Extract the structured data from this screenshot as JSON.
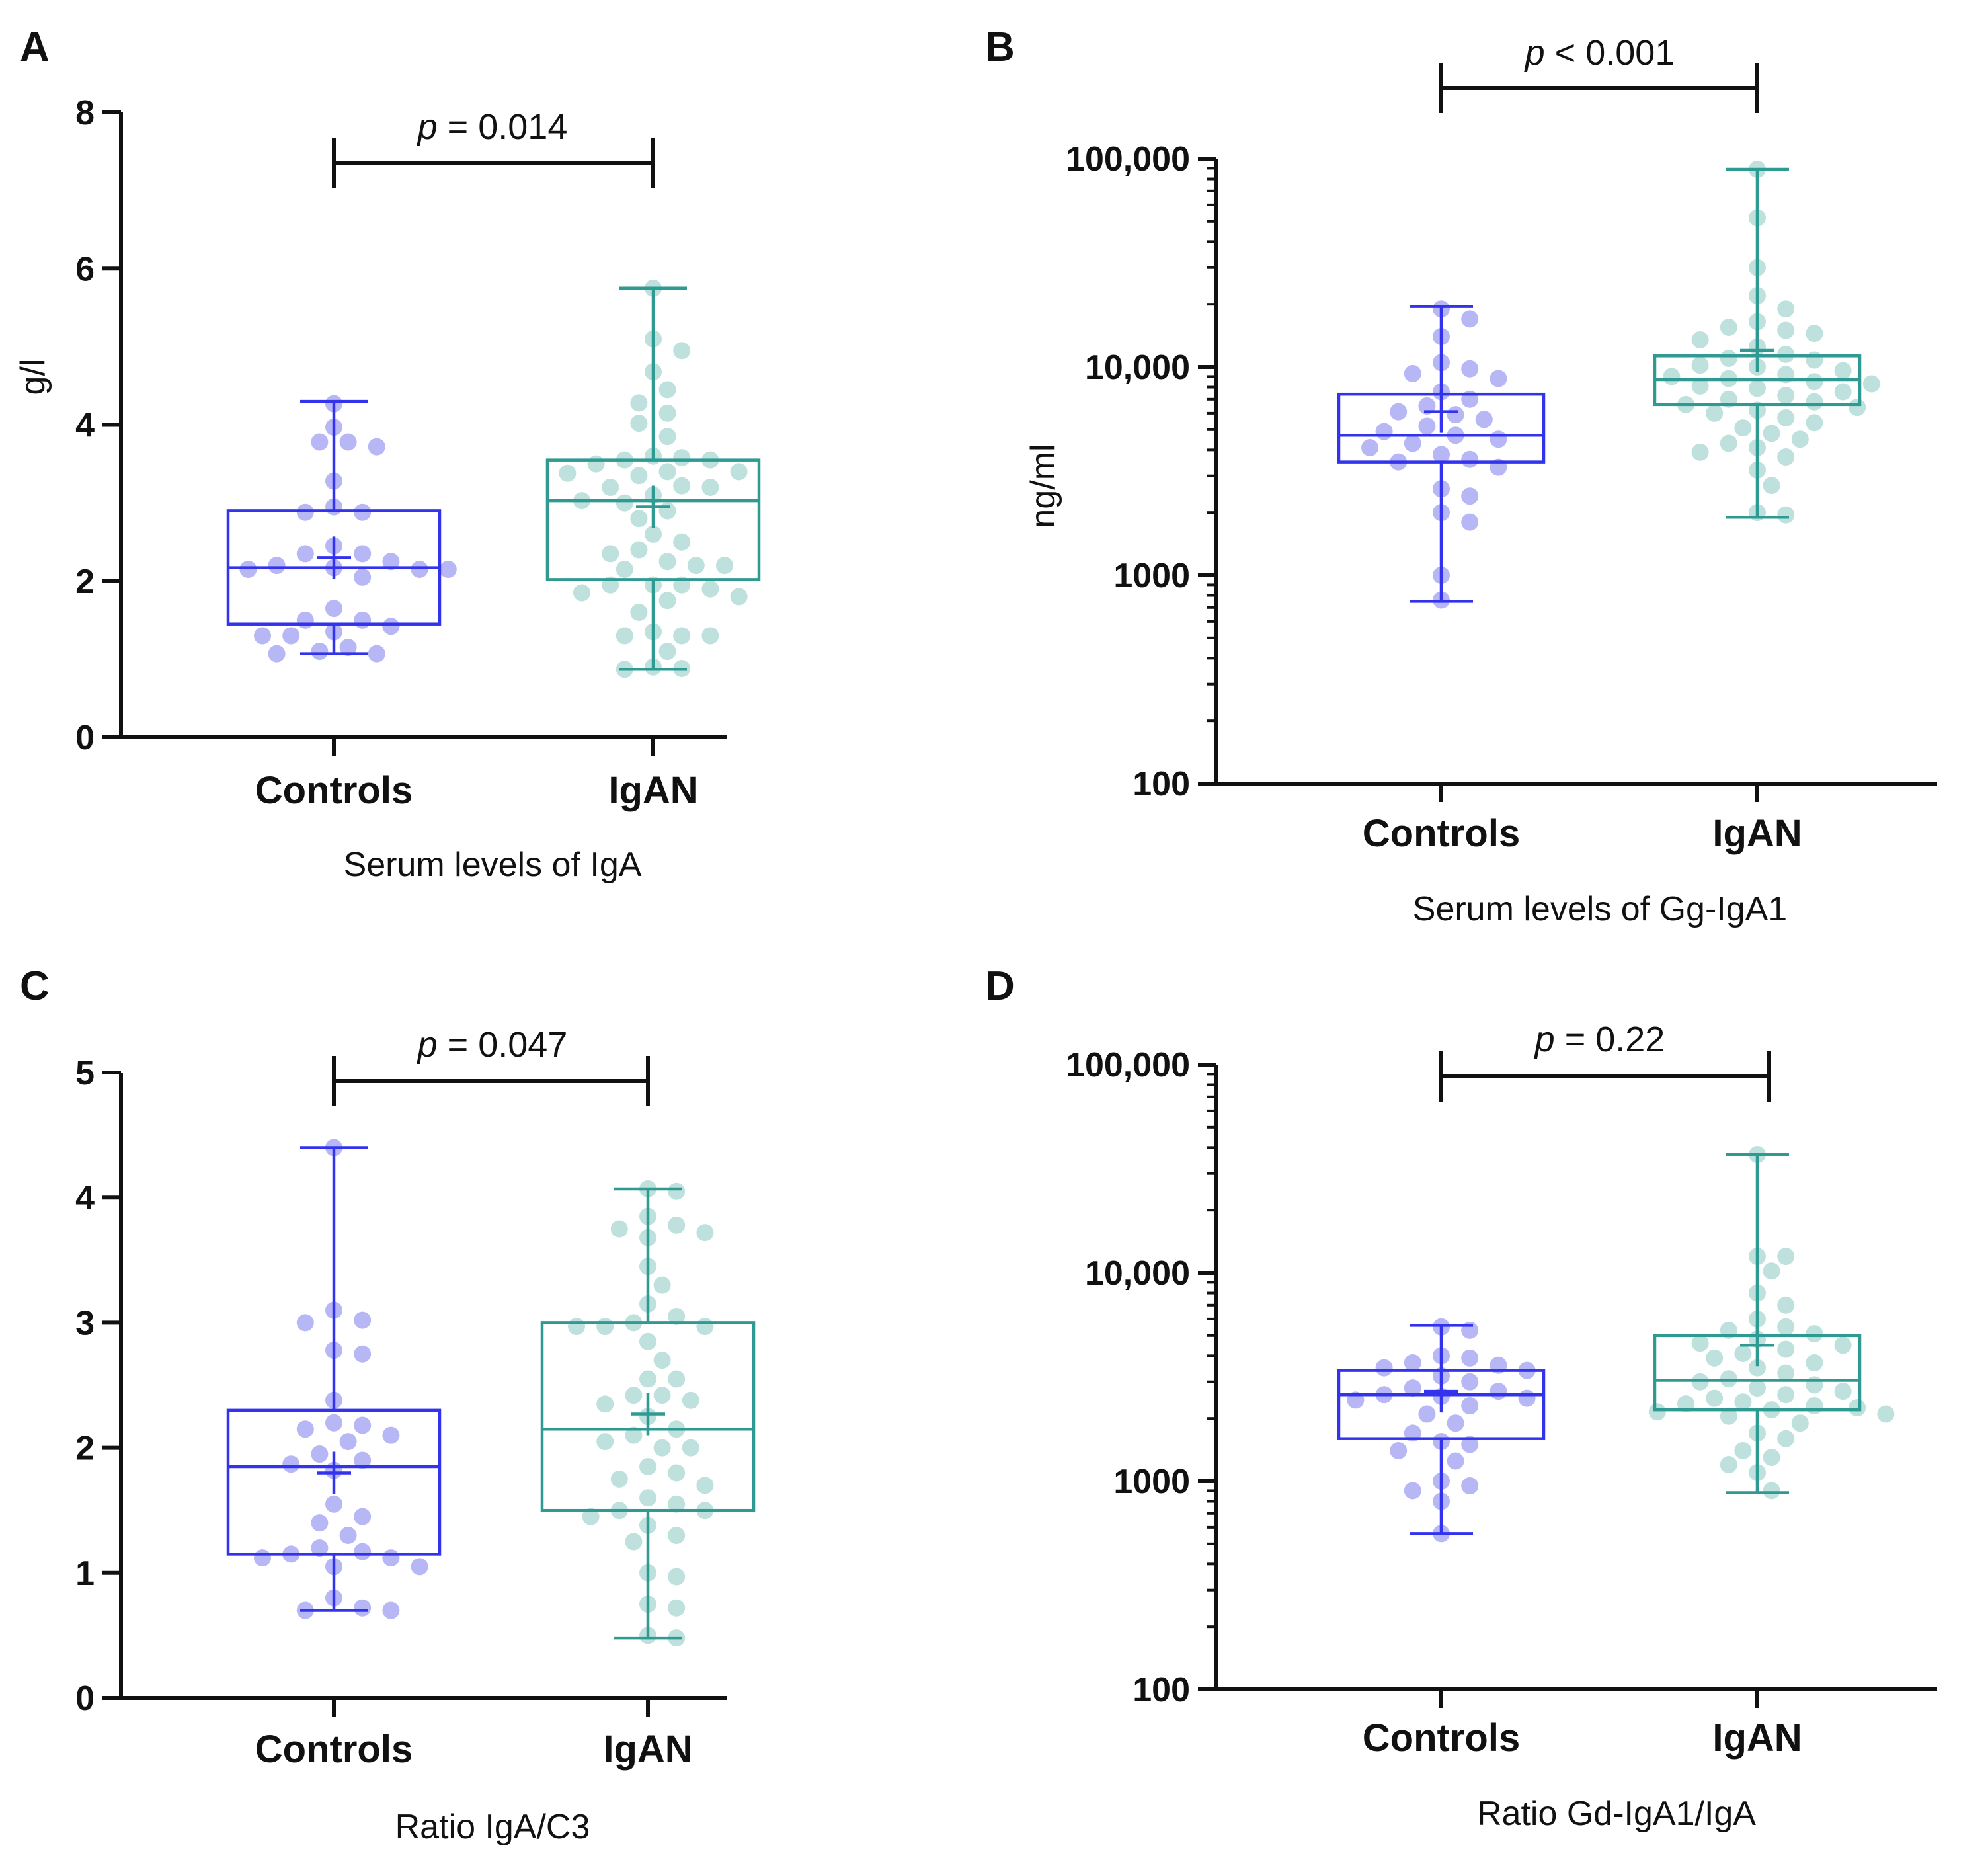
{
  "colors": {
    "controls": "#3333ee",
    "controls_dot": "#aaaaf4",
    "igan": "#2f9a92",
    "igan_dot": "#b3dcd7",
    "axis": "#111111"
  },
  "chart_data": [
    {
      "panel": "A",
      "type": "box",
      "scale": "linear",
      "ylim": [
        0,
        8
      ],
      "yticks": [
        0,
        2,
        4,
        6,
        8
      ],
      "ytick_labels": [
        "0",
        "2",
        "4",
        "6",
        "8"
      ],
      "ylabel": "g/l",
      "xlabel": "Serum levels of IgA",
      "categories": [
        "Controls",
        "IgAN"
      ],
      "significance": {
        "p_symbol": "p",
        "text": " = 0.014"
      },
      "series": [
        {
          "name": "Controls",
          "min": 1.07,
          "q1": 1.45,
          "median": 2.17,
          "q3": 2.9,
          "max": 4.3,
          "mean": 2.3,
          "points": [
            4.27,
            3.97,
            3.78,
            3.78,
            3.72,
            3.28,
            2.95,
            2.88,
            2.88,
            2.45,
            2.35,
            2.35,
            2.25,
            2.2,
            2.17,
            2.15,
            2.15,
            2.15,
            2.05,
            1.65,
            1.5,
            1.5,
            1.42,
            1.35,
            1.3,
            1.3,
            1.15,
            1.1,
            1.07,
            1.07
          ]
        },
        {
          "name": "IgAN",
          "min": 0.87,
          "q1": 2.02,
          "median": 3.03,
          "q3": 3.55,
          "max": 5.75,
          "mean": 2.95,
          "points": [
            5.75,
            5.1,
            4.95,
            4.68,
            4.45,
            4.28,
            4.15,
            4.02,
            3.85,
            3.6,
            3.58,
            3.55,
            3.55,
            3.5,
            3.4,
            3.4,
            3.38,
            3.35,
            3.22,
            3.2,
            3.2,
            3.1,
            3.03,
            3.0,
            2.9,
            2.8,
            2.6,
            2.5,
            2.4,
            2.35,
            2.25,
            2.2,
            2.2,
            2.15,
            1.95,
            1.95,
            1.95,
            1.9,
            1.85,
            1.8,
            1.75,
            1.6,
            1.35,
            1.3,
            1.3,
            1.3,
            1.1,
            0.9,
            0.88,
            0.87
          ]
        }
      ]
    },
    {
      "panel": "B",
      "type": "box",
      "scale": "log",
      "ylim": [
        100,
        100000
      ],
      "yticks": [
        100,
        1000,
        10000,
        100000
      ],
      "ytick_labels": [
        "100",
        "1000",
        "10,000",
        "100,000"
      ],
      "ylabel": "ng/ml",
      "xlabel": "Serum levels of Gg-IgA1",
      "categories": [
        "Controls",
        "IgAN"
      ],
      "significance": {
        "p_symbol": "p",
        "text": " < 0.001"
      },
      "series": [
        {
          "name": "Controls",
          "min": 750,
          "q1": 3500,
          "median": 4700,
          "q3": 7400,
          "max": 19500,
          "mean": 6100,
          "points": [
            19000,
            17000,
            14000,
            10500,
            9800,
            9300,
            8800,
            7600,
            7000,
            6500,
            6100,
            5900,
            5600,
            5200,
            4900,
            4700,
            4500,
            4300,
            4100,
            3800,
            3600,
            3500,
            3300,
            2600,
            2400,
            2000,
            1800,
            1000,
            760
          ]
        },
        {
          "name": "IgAN",
          "min": 1900,
          "q1": 6600,
          "median": 8700,
          "q3": 11300,
          "max": 89000,
          "mean": 12000,
          "points": [
            89000,
            52000,
            30000,
            22000,
            19000,
            16500,
            15500,
            15000,
            14500,
            13500,
            12500,
            11500,
            11000,
            10800,
            10200,
            10000,
            9600,
            9200,
            9000,
            8800,
            8500,
            8300,
            8100,
            7900,
            7600,
            7300,
            7000,
            6800,
            6600,
            6400,
            6200,
            6000,
            5700,
            5400,
            5100,
            4800,
            4500,
            4300,
            4100,
            3900,
            3700,
            3200,
            2700,
            2000,
            1950
          ]
        }
      ]
    },
    {
      "panel": "C",
      "type": "box",
      "scale": "linear",
      "ylim": [
        0,
        5
      ],
      "yticks": [
        0,
        1,
        2,
        3,
        4,
        5
      ],
      "ytick_labels": [
        "0",
        "1",
        "2",
        "3",
        "4",
        "5"
      ],
      "ylabel": "",
      "xlabel": "Ratio IgA/C3",
      "categories": [
        "Controls",
        "IgAN"
      ],
      "significance": {
        "p_symbol": "p",
        "text": " = 0.047"
      },
      "series": [
        {
          "name": "Controls",
          "min": 0.7,
          "q1": 1.15,
          "median": 1.85,
          "q3": 2.3,
          "max": 4.4,
          "mean": 1.8,
          "points": [
            4.4,
            3.1,
            3.02,
            3.0,
            2.78,
            2.75,
            2.38,
            2.2,
            2.18,
            2.15,
            2.1,
            2.05,
            1.95,
            1.9,
            1.87,
            1.82,
            1.55,
            1.45,
            1.4,
            1.3,
            1.2,
            1.17,
            1.15,
            1.12,
            1.12,
            1.05,
            1.05,
            0.8,
            0.72,
            0.7,
            0.7
          ]
        },
        {
          "name": "IgAN",
          "min": 0.48,
          "q1": 1.5,
          "median": 2.15,
          "q3": 3.0,
          "max": 4.07,
          "mean": 2.27,
          "points": [
            4.07,
            4.05,
            3.85,
            3.78,
            3.75,
            3.72,
            3.68,
            3.45,
            3.3,
            3.15,
            3.05,
            3.0,
            2.97,
            2.97,
            2.97,
            2.85,
            2.7,
            2.55,
            2.55,
            2.42,
            2.42,
            2.38,
            2.35,
            2.25,
            2.15,
            2.1,
            2.05,
            2.0,
            2.0,
            1.85,
            1.8,
            1.75,
            1.7,
            1.6,
            1.55,
            1.5,
            1.5,
            1.45,
            1.38,
            1.3,
            1.25,
            1.0,
            0.97,
            0.75,
            0.72,
            0.5,
            0.48
          ]
        }
      ]
    },
    {
      "panel": "D",
      "type": "box",
      "scale": "log",
      "ylim": [
        100,
        100000
      ],
      "yticks": [
        100,
        1000,
        10000,
        100000
      ],
      "ytick_labels": [
        "100",
        "1000",
        "10,000",
        "100,000"
      ],
      "ylabel": "",
      "xlabel": "Ratio Gd-IgA1/IgA",
      "categories": [
        "Controls",
        "IgAN"
      ],
      "significance": {
        "p_symbol": "p",
        "text": " = 0.22"
      },
      "series": [
        {
          "name": "Controls",
          "min": 560,
          "q1": 1600,
          "median": 2600,
          "q3": 3400,
          "max": 5600,
          "mean": 2700,
          "points": [
            5500,
            5300,
            4000,
            3900,
            3700,
            3600,
            3500,
            3400,
            3200,
            3000,
            2800,
            2700,
            2600,
            2550,
            2500,
            2450,
            2300,
            2100,
            1900,
            1700,
            1550,
            1500,
            1400,
            1250,
            1000,
            950,
            900,
            800,
            560
          ]
        },
        {
          "name": "IgAN",
          "min": 880,
          "q1": 2200,
          "median": 3050,
          "q3": 5000,
          "max": 37000,
          "mean": 4500,
          "points": [
            37000,
            12000,
            12000,
            10200,
            8000,
            7000,
            6000,
            5500,
            5300,
            5100,
            4800,
            4600,
            4500,
            4300,
            4100,
            3900,
            3700,
            3500,
            3300,
            3100,
            3000,
            2900,
            2800,
            2700,
            2600,
            2500,
            2400,
            2350,
            2300,
            2250,
            2200,
            2150,
            2100,
            2050,
            1900,
            1700,
            1600,
            1400,
            1300,
            1200,
            1100,
            900
          ]
        }
      ]
    }
  ]
}
